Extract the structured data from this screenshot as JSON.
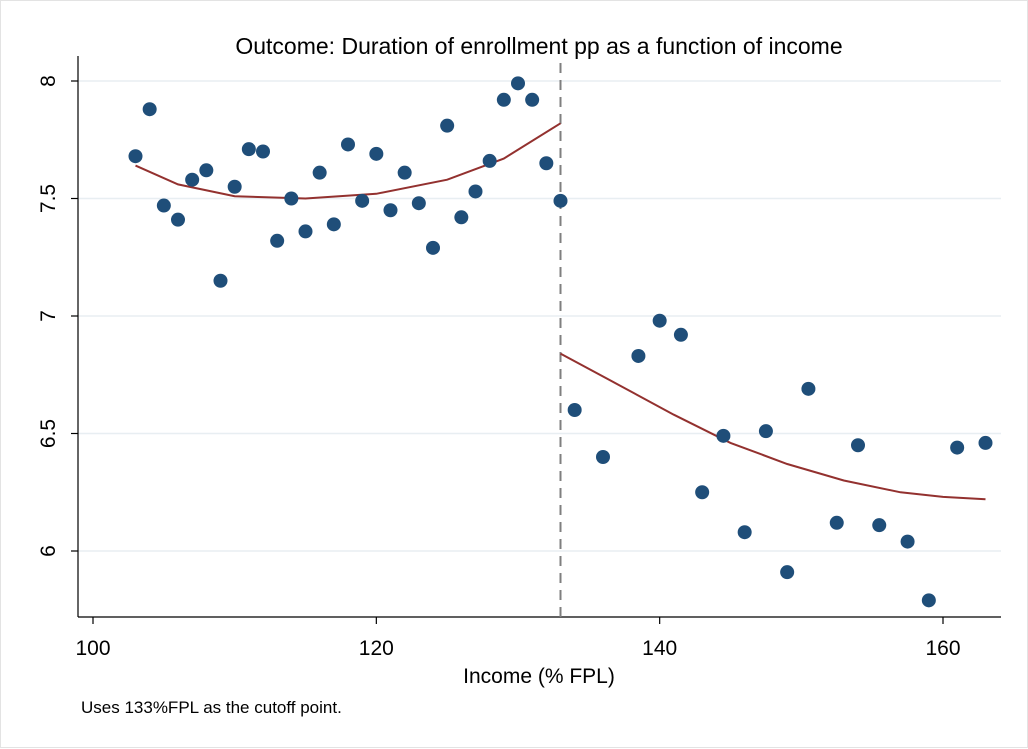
{
  "chart_data": {
    "type": "scatter",
    "title": "Outcome: Duration of enrollment pp as a function of income",
    "xlabel": "Income (% FPL)",
    "ylabel": "",
    "note": "Uses 133%FPL as the cutoff point.",
    "xlim": [
      99,
      164
    ],
    "ylim": [
      5.72,
      8.08
    ],
    "x_ticks": [
      100,
      120,
      140,
      160
    ],
    "y_ticks": [
      6,
      6.5,
      7,
      7.5,
      8
    ],
    "y_tick_labels": [
      "6",
      "6.5",
      "7",
      "7.5",
      "8"
    ],
    "grid": "horizontal",
    "cutoff_x": 133,
    "colors": {
      "points": "#1f4e79",
      "fit": "#93312f",
      "cutoff": "#7f7f7f",
      "grid": "#e8eef2"
    },
    "series": [
      {
        "role": "points",
        "points": [
          [
            103,
            7.68
          ],
          [
            104,
            7.88
          ],
          [
            105,
            7.47
          ],
          [
            106,
            7.41
          ],
          [
            107,
            7.58
          ],
          [
            108,
            7.62
          ],
          [
            109,
            7.15
          ],
          [
            110,
            7.55
          ],
          [
            111,
            7.71
          ],
          [
            112,
            7.7
          ],
          [
            113,
            7.32
          ],
          [
            114,
            7.5
          ],
          [
            115,
            7.36
          ],
          [
            116,
            7.61
          ],
          [
            117,
            7.39
          ],
          [
            118,
            7.73
          ],
          [
            119,
            7.49
          ],
          [
            120,
            7.69
          ],
          [
            121,
            7.45
          ],
          [
            122,
            7.61
          ],
          [
            123,
            7.48
          ],
          [
            124,
            7.29
          ],
          [
            125,
            7.81
          ],
          [
            126,
            7.42
          ],
          [
            127,
            7.53
          ],
          [
            128,
            7.66
          ],
          [
            129,
            7.92
          ],
          [
            130,
            7.99
          ],
          [
            131,
            7.92
          ],
          [
            132,
            7.65
          ],
          [
            133,
            7.49
          ],
          [
            134,
            6.6
          ],
          [
            136,
            6.4
          ],
          [
            138.5,
            6.83
          ],
          [
            140,
            6.98
          ],
          [
            141.5,
            6.92
          ],
          [
            143,
            6.25
          ],
          [
            144.5,
            6.49
          ],
          [
            146,
            6.08
          ],
          [
            147.5,
            6.51
          ],
          [
            149,
            5.91
          ],
          [
            150.5,
            6.69
          ],
          [
            152.5,
            6.12
          ],
          [
            154,
            6.45
          ],
          [
            155.5,
            6.11
          ],
          [
            157.5,
            6.04
          ],
          [
            159,
            5.79
          ],
          [
            161,
            6.44
          ],
          [
            163,
            6.46
          ]
        ]
      },
      {
        "role": "fit-left",
        "points": [
          [
            103,
            7.64
          ],
          [
            106,
            7.56
          ],
          [
            110,
            7.51
          ],
          [
            115,
            7.5
          ],
          [
            120,
            7.52
          ],
          [
            125,
            7.58
          ],
          [
            129,
            7.67
          ],
          [
            133,
            7.82
          ]
        ]
      },
      {
        "role": "fit-right",
        "points": [
          [
            133,
            6.84
          ],
          [
            137,
            6.71
          ],
          [
            141,
            6.58
          ],
          [
            145,
            6.46
          ],
          [
            149,
            6.37
          ],
          [
            153,
            6.3
          ],
          [
            157,
            6.25
          ],
          [
            160,
            6.23
          ],
          [
            163,
            6.22
          ]
        ]
      }
    ]
  }
}
